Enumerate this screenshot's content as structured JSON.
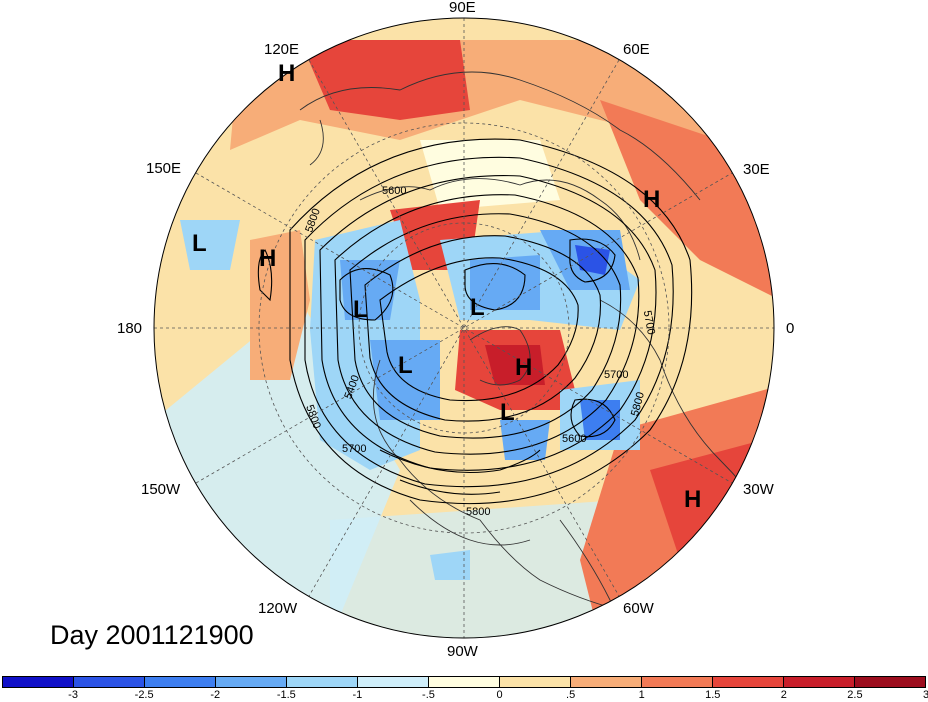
{
  "map": {
    "day_label": "Day 2001121900",
    "lon_labels": {
      "e90": "90E",
      "e60": "60E",
      "e30": "30E",
      "e0": "0",
      "w30": "30W",
      "w60": "60W",
      "w90": "90W",
      "w120": "120W",
      "w150": "150W",
      "e180": "180",
      "e150": "150E",
      "e120": "120E"
    },
    "contour_labels": {
      "c5600a": "5600",
      "c5800a": "5800",
      "c5700a": "5700",
      "c5800b": "5800",
      "c5700b": "5700",
      "c5400": "5400",
      "c5800c": "5800",
      "c5700c": "5700",
      "c5800d": "5800",
      "c5600b": "5600",
      "c5800e": "5800"
    },
    "centers": {
      "h_120e": "H",
      "h_30e": "H",
      "l_pacific": "L",
      "h_pacific": "H",
      "l_siberia": "L",
      "l_north": "L",
      "l_canada": "L",
      "h_arctic": "H",
      "l_baffin": "L",
      "h_atlantic": "H"
    },
    "colorbar": {
      "colors": [
        "#1010c8",
        "#2b53e6",
        "#3d7ef0",
        "#66aaf4",
        "#9ed6f7",
        "#cfeefa",
        "#fffde0",
        "#fbe2a8",
        "#f7ad78",
        "#f27a56",
        "#e6453b",
        "#c81e2a",
        "#9c0d1e"
      ],
      "ticks": [
        "-3",
        "-2.5",
        "-2",
        "-1.5",
        "-1",
        "-.5",
        "0",
        ".5",
        "1",
        "1.5",
        "2",
        "2.5",
        "3"
      ]
    }
  }
}
